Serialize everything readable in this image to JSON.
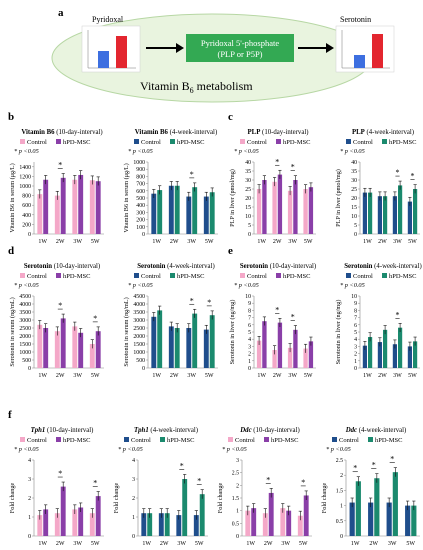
{
  "panel_a": {
    "letter": "a",
    "pyridoxal_label": "Pyridoxal",
    "plp_line1": "Pyridoxal 5'-phosphate",
    "plp_line2": "(PLP or P5P)",
    "serotonin_label": "Serotonin",
    "metabolism_text": "Vitamin B",
    "metabolism_sub": "6",
    "metabolism_tail": " metabolism",
    "colors": {
      "ellipse": "#e9f4df",
      "ellipse_stroke": "#b7d7a4",
      "plp_box": "#33a953",
      "blue": "#3d6fe0",
      "red": "#e3262f"
    }
  },
  "colors": {
    "control_10d": "#f4a8c8",
    "hpd_10d": "#8a3fa8",
    "control_4w": "#1f4e8c",
    "hpd_4w": "#1b8a6e"
  },
  "chart_data": [
    {
      "id": "b1",
      "letter": "b",
      "type": "bar",
      "title": "Vitamin B6",
      "title_tail": " (10-day-interval)",
      "title_italic": false,
      "legend": [
        "Control",
        "hPD-MSC"
      ],
      "palette": "10d",
      "note": "* p <0.05",
      "ylabel": "Vitamin B6 in serum (μg/L)",
      "ylim": [
        0,
        1500
      ],
      "yticks": [
        0,
        200,
        400,
        600,
        800,
        1000,
        1200,
        1400
      ],
      "categories": [
        "1W",
        "2W",
        "3W",
        "5W"
      ],
      "series": [
        {
          "name": "Control",
          "values": [
            830,
            800,
            1130,
            1120
          ]
        },
        {
          "name": "hPD-MSC",
          "values": [
            1130,
            1170,
            1230,
            1100
          ]
        }
      ],
      "sig": [
        1
      ]
    },
    {
      "id": "b2",
      "letter": "",
      "type": "bar",
      "title": "Vitamin B6",
      "title_tail": " (4-week-interval)",
      "title_italic": false,
      "legend": [
        "Control",
        "hPD-MSC"
      ],
      "palette": "4w",
      "note": "* p <0.05",
      "ylabel": "Vitamin B6 in serum (μg/L)",
      "ylim": [
        0,
        1000
      ],
      "yticks": [
        0,
        100,
        200,
        300,
        400,
        500,
        600,
        700,
        800,
        900,
        1000
      ],
      "categories": [
        "1W",
        "2W",
        "3W",
        "5W"
      ],
      "series": [
        {
          "name": "Control",
          "values": [
            560,
            670,
            520,
            520
          ]
        },
        {
          "name": "hPD-MSC",
          "values": [
            610,
            670,
            650,
            580
          ]
        }
      ],
      "sig": [
        2
      ]
    },
    {
      "id": "c1",
      "letter": "c",
      "type": "bar",
      "title": "PLP",
      "title_tail": " (10-day-interval)",
      "title_italic": false,
      "legend": [
        "Control",
        "hPD-MSC"
      ],
      "palette": "10d",
      "note": "* p <0.05",
      "ylabel": "PLP in liver (pmol/mg)",
      "ylim": [
        0,
        40
      ],
      "yticks": [
        0,
        5,
        10,
        15,
        20,
        25,
        30,
        35,
        40
      ],
      "categories": [
        "1W",
        "2W",
        "3W",
        "5W"
      ],
      "series": [
        {
          "name": "Control",
          "values": [
            25,
            29,
            24,
            25
          ]
        },
        {
          "name": "hPD-MSC",
          "values": [
            30,
            33,
            30,
            26
          ]
        }
      ],
      "sig": [
        1,
        2
      ]
    },
    {
      "id": "c2",
      "letter": "",
      "type": "bar",
      "title": "PLP",
      "title_tail": " (4-week-interval)",
      "title_italic": false,
      "legend": [
        "Control",
        "hPD-MSC"
      ],
      "palette": "4w",
      "note": "* p <0.05",
      "ylabel": "PLP in liver (pmol/mg)",
      "ylim": [
        0,
        40
      ],
      "yticks": [
        0,
        5,
        10,
        15,
        20,
        25,
        30,
        35,
        40
      ],
      "categories": [
        "1W",
        "2W",
        "3W",
        "5W"
      ],
      "series": [
        {
          "name": "Control",
          "values": [
            23,
            21,
            21,
            18
          ]
        },
        {
          "name": "hPD-MSC",
          "values": [
            23,
            21,
            27,
            25
          ]
        }
      ],
      "sig": [
        2,
        3
      ]
    },
    {
      "id": "d1",
      "letter": "d",
      "type": "bar",
      "title": "Serotonin",
      "title_tail": " (10-day-interval)",
      "title_italic": false,
      "legend": [
        "Control",
        "hPD-MSC"
      ],
      "palette": "10d",
      "note": "* p <0.05",
      "ylabel": "Serotonin in serum (ng/mL)",
      "ylim": [
        0,
        4500
      ],
      "yticks": [
        0,
        500,
        1000,
        1500,
        2000,
        2500,
        3000,
        3500,
        4000,
        4500
      ],
      "categories": [
        "1W",
        "2W",
        "3W",
        "5W"
      ],
      "series": [
        {
          "name": "Control",
          "values": [
            2700,
            2300,
            2600,
            1500
          ]
        },
        {
          "name": "hPD-MSC",
          "values": [
            2500,
            3100,
            2200,
            2300
          ]
        }
      ],
      "sig": [
        1,
        3
      ]
    },
    {
      "id": "d2",
      "letter": "",
      "type": "bar",
      "title": "Serotonin",
      "title_tail": " (4-week-interval)",
      "title_italic": false,
      "legend": [
        "Control",
        "hPD-MSC"
      ],
      "palette": "4w",
      "note": "* p <0.05",
      "ylabel": "Serotonin in serum (ng/mL)",
      "ylim": [
        0,
        4500
      ],
      "yticks": [
        0,
        500,
        1000,
        1500,
        2000,
        2500,
        3000,
        3500,
        4000,
        4500
      ],
      "categories": [
        "1W",
        "2W",
        "3W",
        "5W"
      ],
      "series": [
        {
          "name": "Control",
          "values": [
            3200,
            2600,
            2500,
            2400
          ]
        },
        {
          "name": "hPD-MSC",
          "values": [
            3600,
            2500,
            3400,
            3300
          ]
        }
      ],
      "sig": [
        2,
        3
      ]
    },
    {
      "id": "e1",
      "letter": "e",
      "type": "bar",
      "title": "Serotonin",
      "title_tail": " (10-day-interval)",
      "title_italic": false,
      "legend": [
        "Control",
        "hPD-MSC"
      ],
      "palette": "10d",
      "note": "* p <0.05",
      "ylabel": "Serotonin in liver (ng/mg)",
      "ylim": [
        0,
        10
      ],
      "yticks": [
        0,
        1,
        2,
        3,
        4,
        5,
        6,
        7,
        8,
        9,
        10
      ],
      "categories": [
        "1W",
        "2W",
        "3W",
        "5W"
      ],
      "series": [
        {
          "name": "Control",
          "values": [
            3.8,
            2.5,
            2.8,
            2.7
          ]
        },
        {
          "name": "hPD-MSC",
          "values": [
            6.5,
            6.3,
            5.3,
            3.7
          ]
        }
      ],
      "sig": [
        1,
        2
      ]
    },
    {
      "id": "e2",
      "letter": "",
      "type": "bar",
      "title": "Serotonin",
      "title_tail": " (4-week-interval)",
      "title_italic": false,
      "legend": [
        "Control",
        "hPD-MSC"
      ],
      "palette": "4w",
      "note": "* p <0.05",
      "ylabel": "Serotonin in liver (ng/mg)",
      "ylim": [
        0,
        10
      ],
      "yticks": [
        0,
        1,
        2,
        3,
        4,
        5,
        6,
        7,
        8,
        9,
        10
      ],
      "categories": [
        "1W",
        "2W",
        "3W",
        "5W"
      ],
      "series": [
        {
          "name": "Control",
          "values": [
            3.1,
            3.6,
            3.3,
            3.0
          ]
        },
        {
          "name": "hPD-MSC",
          "values": [
            4.3,
            5.3,
            5.6,
            3.7
          ]
        }
      ],
      "sig": [
        2
      ]
    },
    {
      "id": "f1",
      "letter": "f",
      "type": "bar",
      "title": "Tph1",
      "title_tail": " (10-day-interval)",
      "title_italic": true,
      "legend": [
        "Control",
        "hPD-MSC"
      ],
      "palette": "10d",
      "note": "* p <0.05",
      "ylabel": "Fold change",
      "ylim": [
        0,
        4
      ],
      "yticks": [
        0,
        1,
        2,
        3,
        4
      ],
      "categories": [
        "1W",
        "2W",
        "3W",
        "5W"
      ],
      "series": [
        {
          "name": "Control",
          "values": [
            1.1,
            1.2,
            1.4,
            1.2
          ]
        },
        {
          "name": "hPD-MSC",
          "values": [
            1.4,
            2.6,
            1.5,
            2.1
          ]
        }
      ],
      "sig": [
        1,
        3
      ]
    },
    {
      "id": "f2",
      "letter": "",
      "type": "bar",
      "title": "Tph1",
      "title_tail": " (4-week-interval)",
      "title_italic": true,
      "legend": [
        "Control",
        "hPD-MSC"
      ],
      "palette": "4w",
      "note": "* p <0.05",
      "ylabel": "Fold change",
      "ylim": [
        0,
        4
      ],
      "yticks": [
        0,
        1,
        2,
        3,
        4
      ],
      "categories": [
        "1W",
        "2W",
        "3W",
        "5W"
      ],
      "series": [
        {
          "name": "Control",
          "values": [
            1.2,
            1.2,
            1.1,
            1.1
          ]
        },
        {
          "name": "hPD-MSC",
          "values": [
            1.2,
            1.2,
            3.0,
            2.2
          ]
        }
      ],
      "sig": [
        2,
        3
      ]
    },
    {
      "id": "f3",
      "letter": "",
      "type": "bar",
      "title": "Ddc",
      "title_tail": " (10-day-interval)",
      "title_italic": true,
      "legend": [
        "Control",
        "hPD-MSC"
      ],
      "palette": "10d",
      "note": "* p <0.05",
      "ylabel": "Fold change",
      "ylim": [
        0,
        3
      ],
      "yticks": [
        0,
        0.5,
        1,
        1.5,
        2,
        2.5,
        3
      ],
      "categories": [
        "1W",
        "2W",
        "3W",
        "5W"
      ],
      "series": [
        {
          "name": "Control",
          "values": [
            1.0,
            0.9,
            1.1,
            0.8
          ]
        },
        {
          "name": "hPD-MSC",
          "values": [
            1.1,
            1.7,
            1.0,
            1.6
          ]
        }
      ],
      "sig": [
        1,
        3
      ]
    },
    {
      "id": "f4",
      "letter": "",
      "type": "bar",
      "title": "Ddc",
      "title_tail": " (4-week-interval)",
      "title_italic": true,
      "legend": [
        "Control",
        "hPD-MSC"
      ],
      "palette": "4w",
      "note": "* p <0.05",
      "ylabel": "Fold change",
      "ylim": [
        0,
        2.5
      ],
      "yticks": [
        0,
        0.5,
        1,
        1.5,
        2,
        2.5
      ],
      "categories": [
        "1W",
        "2W",
        "3W",
        "5W"
      ],
      "series": [
        {
          "name": "Control",
          "values": [
            1.1,
            1.1,
            1.1,
            1.0
          ]
        },
        {
          "name": "hPD-MSC",
          "values": [
            1.8,
            1.9,
            2.1,
            1.0
          ]
        }
      ],
      "sig": [
        0,
        1,
        2
      ]
    }
  ]
}
